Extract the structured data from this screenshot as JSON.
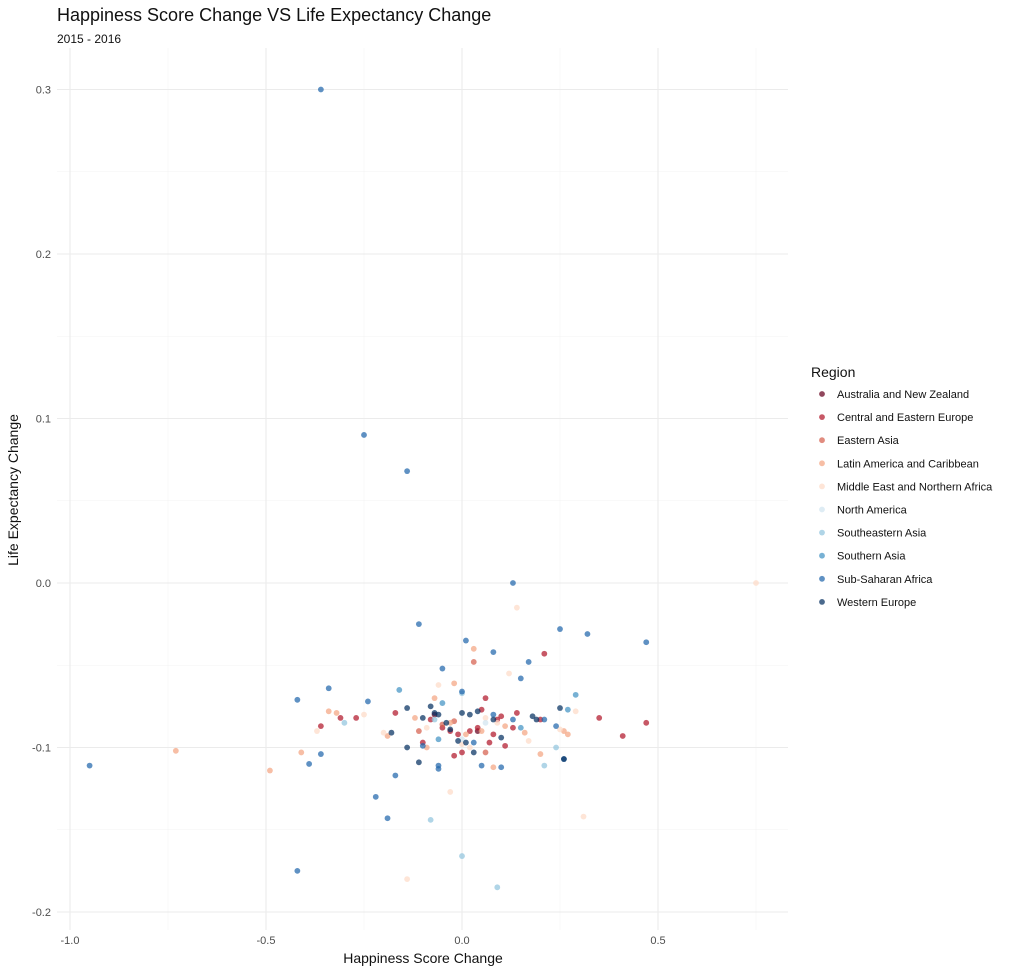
{
  "chart_data": {
    "type": "scatter",
    "title": "Happiness Score Change VS Life Expectancy Change",
    "subtitle": "2015 - 2016",
    "xlabel": "Happiness Score Change",
    "ylabel": "Life Expectancy Change",
    "xlim": [
      -1.0,
      0.8
    ],
    "ylim": [
      -0.21,
      0.31
    ],
    "x_ticks": [
      -1.0,
      -0.5,
      0.0,
      0.5
    ],
    "x_tick_labels": [
      "-1.0",
      "-0.5",
      "0.0",
      "0.5"
    ],
    "y_ticks": [
      -0.2,
      -0.1,
      0.0,
      0.1,
      0.2,
      0.3
    ],
    "y_tick_labels": [
      "-0.2",
      "-0.1",
      "0.0",
      "0.1",
      "0.2",
      "0.3"
    ],
    "grid": true,
    "legend": {
      "title": "Region",
      "position": "right"
    },
    "series": [
      {
        "name": "Australia and New Zealand",
        "color": "#67001f",
        "x": [
          -0.07,
          0.04
        ],
        "y": [
          -0.08,
          -0.09
        ]
      },
      {
        "name": "Central and Eastern Europe",
        "color": "#b2182b",
        "x": [
          -0.36,
          -0.31,
          -0.27,
          -0.17,
          -0.1,
          -0.08,
          -0.05,
          -0.03,
          -0.02,
          0.0,
          0.02,
          0.04,
          0.06,
          0.07,
          0.08,
          0.09,
          0.11,
          0.14,
          0.2,
          0.21,
          0.35,
          0.41,
          0.47,
          0.05,
          -0.01,
          0.1,
          0.13
        ],
        "y": [
          -0.087,
          -0.082,
          -0.082,
          -0.079,
          -0.097,
          -0.083,
          -0.088,
          -0.09,
          -0.105,
          -0.103,
          -0.09,
          -0.088,
          -0.07,
          -0.097,
          -0.092,
          -0.083,
          -0.099,
          -0.079,
          -0.083,
          -0.043,
          -0.082,
          -0.093,
          -0.085,
          -0.077,
          -0.092,
          -0.081,
          -0.088
        ]
      },
      {
        "name": "Eastern Asia",
        "color": "#d6604d",
        "x": [
          -0.11,
          -0.05,
          -0.02,
          0.03,
          0.06
        ],
        "y": [
          -0.09,
          -0.086,
          -0.084,
          -0.048,
          -0.103
        ]
      },
      {
        "name": "Latin America and Caribbean",
        "color": "#f4a582",
        "x": [
          -0.73,
          -0.49,
          -0.41,
          -0.34,
          -0.32,
          -0.19,
          -0.12,
          -0.09,
          -0.07,
          -0.03,
          -0.02,
          0.01,
          0.03,
          0.05,
          0.08,
          0.11,
          0.16,
          0.2,
          0.26,
          0.27
        ],
        "y": [
          -0.102,
          -0.114,
          -0.103,
          -0.078,
          -0.079,
          -0.093,
          -0.082,
          -0.1,
          -0.07,
          -0.085,
          -0.061,
          -0.092,
          -0.04,
          -0.09,
          -0.112,
          -0.087,
          -0.091,
          -0.104,
          -0.09,
          -0.092
        ]
      },
      {
        "name": "Middle East and Northern Africa",
        "color": "#fddbc7",
        "x": [
          0.75,
          -0.25,
          -0.06,
          0.12,
          0.14,
          0.29,
          0.31,
          -0.14,
          -0.03,
          0.02,
          -0.09,
          0.0,
          0.17,
          -0.2,
          0.09,
          0.25,
          -0.37,
          0.06
        ],
        "y": [
          0.0,
          -0.08,
          -0.062,
          -0.055,
          -0.015,
          -0.078,
          -0.142,
          -0.18,
          -0.127,
          -0.1,
          -0.088,
          -0.098,
          -0.096,
          -0.091,
          -0.085,
          -0.089,
          -0.09,
          -0.082
        ]
      },
      {
        "name": "North America",
        "color": "#d1e5f0",
        "x": [
          0.0,
          0.06
        ],
        "y": [
          -0.095,
          -0.085
        ]
      },
      {
        "name": "Southeastern Asia",
        "color": "#92c5de",
        "x": [
          -0.3,
          -0.08,
          0.0,
          0.09,
          0.21,
          0.24,
          -0.07,
          0.0
        ],
        "y": [
          -0.085,
          -0.144,
          -0.166,
          -0.185,
          -0.111,
          -0.1,
          -0.083,
          -0.067
        ]
      },
      {
        "name": "Southern Asia",
        "color": "#4393c3",
        "x": [
          -0.16,
          -0.05,
          0.15,
          0.29,
          0.27,
          -0.06
        ],
        "y": [
          -0.065,
          -0.073,
          -0.088,
          -0.068,
          -0.077,
          -0.095
        ]
      },
      {
        "name": "Sub-Saharan Africa",
        "color": "#2166ac",
        "x": [
          -0.36,
          -0.25,
          -0.14,
          -0.95,
          -0.42,
          -0.42,
          -0.39,
          -0.36,
          -0.34,
          -0.24,
          -0.22,
          -0.19,
          -0.17,
          -0.11,
          -0.06,
          -0.06,
          -0.05,
          0.0,
          0.01,
          0.05,
          0.08,
          0.08,
          0.1,
          0.13,
          0.15,
          0.17,
          0.21,
          0.25,
          0.26,
          0.32,
          0.47,
          -0.1,
          0.03,
          0.13,
          0.24
        ],
        "y": [
          0.3,
          0.09,
          0.068,
          -0.111,
          -0.071,
          -0.175,
          -0.11,
          -0.104,
          -0.064,
          -0.072,
          -0.13,
          -0.143,
          -0.117,
          -0.025,
          -0.111,
          -0.113,
          -0.052,
          -0.066,
          -0.035,
          -0.111,
          -0.042,
          -0.08,
          -0.112,
          0.0,
          -0.058,
          -0.048,
          -0.083,
          -0.028,
          -0.107,
          -0.031,
          -0.036,
          -0.099,
          -0.097,
          -0.083,
          -0.087
        ]
      },
      {
        "name": "Western Europe",
        "color": "#053061",
        "x": [
          -0.18,
          -0.14,
          -0.14,
          -0.11,
          -0.08,
          -0.07,
          -0.06,
          -0.04,
          -0.03,
          -0.01,
          0.0,
          0.01,
          0.02,
          0.03,
          0.04,
          0.08,
          0.1,
          0.18,
          0.19,
          0.25,
          0.26,
          -0.1
        ],
        "y": [
          -0.091,
          -0.076,
          -0.1,
          -0.109,
          -0.075,
          -0.079,
          -0.08,
          -0.085,
          -0.089,
          -0.096,
          -0.079,
          -0.097,
          -0.08,
          -0.103,
          -0.078,
          -0.083,
          -0.094,
          -0.081,
          -0.083,
          -0.076,
          -0.107,
          -0.082
        ]
      }
    ]
  }
}
